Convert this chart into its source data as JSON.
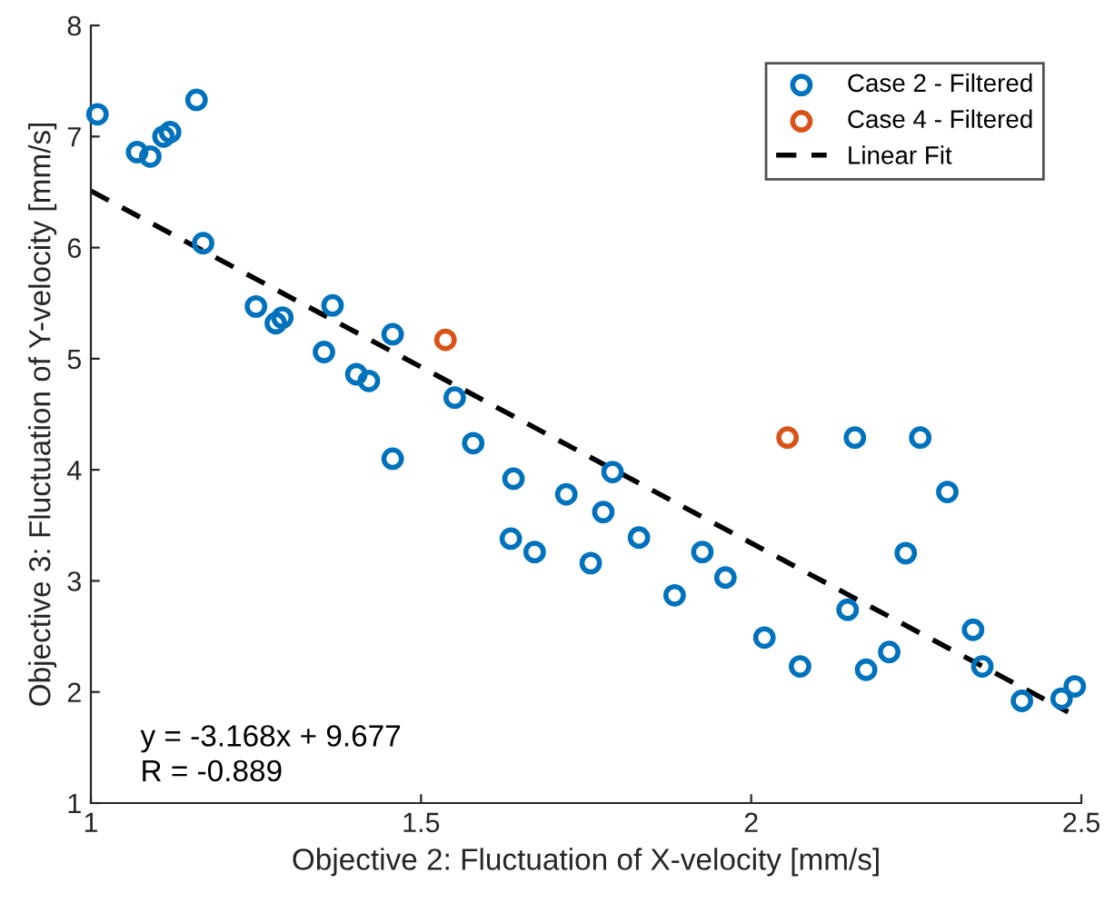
{
  "chart_data": {
    "type": "scatter",
    "xlabel": "Objective 2: Fluctuation of X-velocity [mm/s]",
    "ylabel": "Objective 3: Fluctuation of Y-velocity [mm/s]",
    "xlim": [
      1,
      2.5
    ],
    "xticks": [
      1,
      1.5,
      2,
      2.5
    ],
    "ylim": [
      1,
      8
    ],
    "yticks": [
      1,
      2,
      3,
      4,
      5,
      6,
      7,
      8
    ],
    "grid": false,
    "legend": "top right",
    "marker": "circle",
    "annotations": [
      "y = -3.168x + 9.677",
      "R = -0.889"
    ],
    "series": [
      {
        "name": "Case 2 - Filtered",
        "color": "#0072bd",
        "x": [
          1.01,
          1.07,
          1.09,
          1.11,
          1.12,
          1.16,
          1.17,
          1.25,
          1.28,
          1.29,
          1.366,
          1.457,
          1.353,
          1.402,
          1.421,
          1.551,
          1.457,
          1.579,
          1.79,
          1.64,
          1.72,
          1.776,
          1.83,
          1.636,
          1.672,
          1.757,
          1.926,
          1.961,
          1.884,
          2.157,
          2.256,
          2.297,
          2.234,
          2.146,
          2.336,
          2.02,
          2.209,
          2.074,
          2.174,
          2.35,
          2.41,
          2.47,
          2.49
        ],
        "values": [
          7.2,
          6.86,
          6.82,
          7.0,
          7.04,
          7.33,
          6.04,
          5.47,
          5.32,
          5.37,
          5.48,
          5.22,
          5.06,
          4.86,
          4.8,
          4.65,
          4.1,
          4.24,
          3.98,
          3.92,
          3.78,
          3.62,
          3.39,
          3.38,
          3.26,
          3.16,
          3.26,
          3.03,
          2.87,
          4.29,
          4.29,
          3.8,
          3.25,
          2.74,
          2.56,
          2.49,
          2.36,
          2.23,
          2.2,
          2.23,
          1.92,
          1.94,
          2.05
        ]
      },
      {
        "name": "Case 4 - Filtered",
        "color": "#d95319",
        "x": [
          1.537,
          2.055
        ],
        "values": [
          5.17,
          4.29
        ]
      },
      {
        "name": "Linear Fit",
        "color": "#000000",
        "type": "line",
        "marker": "none",
        "line_style": "dashed",
        "x": [
          1,
          2.48
        ],
        "values": [
          6.51,
          1.82
        ]
      }
    ]
  }
}
